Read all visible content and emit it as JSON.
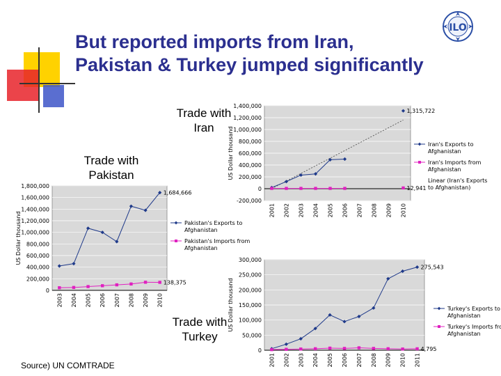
{
  "slide": {
    "title_line1": "But reported imports from Iran,",
    "title_line2": "Pakistan & Turkey jumped significantly",
    "source": "Source) UN COMTRADE"
  },
  "captions": {
    "iran": [
      "Trade with",
      "Iran"
    ],
    "pakistan": [
      "Trade with",
      "Pakistan"
    ],
    "turkey": [
      "Trade with",
      "Turkey"
    ]
  },
  "colors": {
    "title": "#2b2f8f",
    "exports": "#1f3a8a",
    "imports": "#e020c0",
    "deco_yellow": "#ffd200",
    "deco_red": "#e8232a",
    "deco_blue": "#3d55c8"
  },
  "icons": {
    "logo": "ilo-logo"
  },
  "chart_data": [
    {
      "id": "iran",
      "type": "line",
      "ylabel": "US Dollar thousand",
      "ylim": [
        -200000,
        1400000
      ],
      "yticks": [
        -200000,
        0,
        200000,
        400000,
        600000,
        800000,
        1000000,
        1200000,
        1400000
      ],
      "ytick_labels": [
        "-200,000",
        "0",
        "200,000",
        "400,000",
        "600,000",
        "800,000",
        "1,000,000",
        "1,200,000",
        "1,400,000"
      ],
      "categories": [
        "2001",
        "2002",
        "2003",
        "2004",
        "2005",
        "2006",
        "2007",
        "2008",
        "2009",
        "2010"
      ],
      "grid": true,
      "legend": "right",
      "series": [
        {
          "name": "Iran's Exports to Afghanistan",
          "role": "exports",
          "values": [
            20000,
            120000,
            230000,
            250000,
            490000,
            500000,
            null,
            null,
            null,
            1315722
          ]
        },
        {
          "name": "Iran's Imports from Afghanistan",
          "role": "imports",
          "values": [
            5000,
            5000,
            5000,
            5000,
            5000,
            5000,
            null,
            null,
            null,
            12941
          ]
        }
      ],
      "trendline": {
        "name": "Linear (Iran's Exports to Afghanistan)",
        "from": [
          0,
          0
        ],
        "to": [
          9,
          1160000
        ]
      },
      "annotations": [
        {
          "index": 9,
          "series": 0,
          "text": "1,315,722"
        },
        {
          "index": 9,
          "series": 1,
          "text": "12,941"
        }
      ]
    },
    {
      "id": "pakistan",
      "type": "line",
      "ylabel": "US Dollar thousand",
      "ylim": [
        0,
        1800000
      ],
      "yticks": [
        0,
        200000,
        400000,
        600000,
        800000,
        1000000,
        1200000,
        1400000,
        1600000,
        1800000
      ],
      "ytick_labels": [
        "0",
        "200,000",
        "400,000",
        "600,000",
        "800,000",
        "1,000,000",
        "1,200,000",
        "1,400,000",
        "1,600,000",
        "1,800,000"
      ],
      "categories": [
        "2003",
        "2004",
        "2005",
        "2006",
        "2007",
        "2008",
        "2009",
        "2010"
      ],
      "grid": true,
      "legend": "right",
      "series": [
        {
          "name": "Pakistan's Exports to Afghanistan",
          "role": "exports",
          "values": [
            420000,
            460000,
            1070000,
            1000000,
            840000,
            1450000,
            1380000,
            1684666
          ]
        },
        {
          "name": "Pakistan's Imports from Afghanistan",
          "role": "imports",
          "values": [
            45000,
            50000,
            65000,
            80000,
            95000,
            110000,
            140000,
            138375
          ]
        }
      ],
      "annotations": [
        {
          "index": 7,
          "series": 0,
          "text": "1,684,666"
        },
        {
          "index": 7,
          "series": 1,
          "text": "138,375"
        }
      ]
    },
    {
      "id": "turkey",
      "type": "line",
      "ylabel": "US Dollar thousand",
      "ylim": [
        0,
        300000
      ],
      "yticks": [
        0,
        50000,
        100000,
        150000,
        200000,
        250000,
        300000
      ],
      "ytick_labels": [
        "0",
        "50,000",
        "100,000",
        "150,000",
        "200,000",
        "250,000",
        "300,000"
      ],
      "categories": [
        "2001",
        "2002",
        "2003",
        "2004",
        "2005",
        "2006",
        "2007",
        "2008",
        "2009",
        "2010",
        "2011"
      ],
      "grid": true,
      "legend": "right",
      "series": [
        {
          "name": "Turkey's Exports to Afghanistan",
          "role": "exports",
          "values": [
            5000,
            20000,
            38000,
            72000,
            117000,
            95000,
            112000,
            140000,
            237000,
            262000,
            275543
          ]
        },
        {
          "name": "Turkey's Imports from Afghanistan",
          "role": "imports",
          "values": [
            2000,
            3000,
            4000,
            5000,
            7000,
            6000,
            8000,
            6000,
            5000,
            4000,
            4795
          ]
        }
      ],
      "annotations": [
        {
          "index": 10,
          "series": 0,
          "text": "275,543"
        },
        {
          "index": 10,
          "series": 1,
          "text": "4,795"
        }
      ]
    }
  ]
}
